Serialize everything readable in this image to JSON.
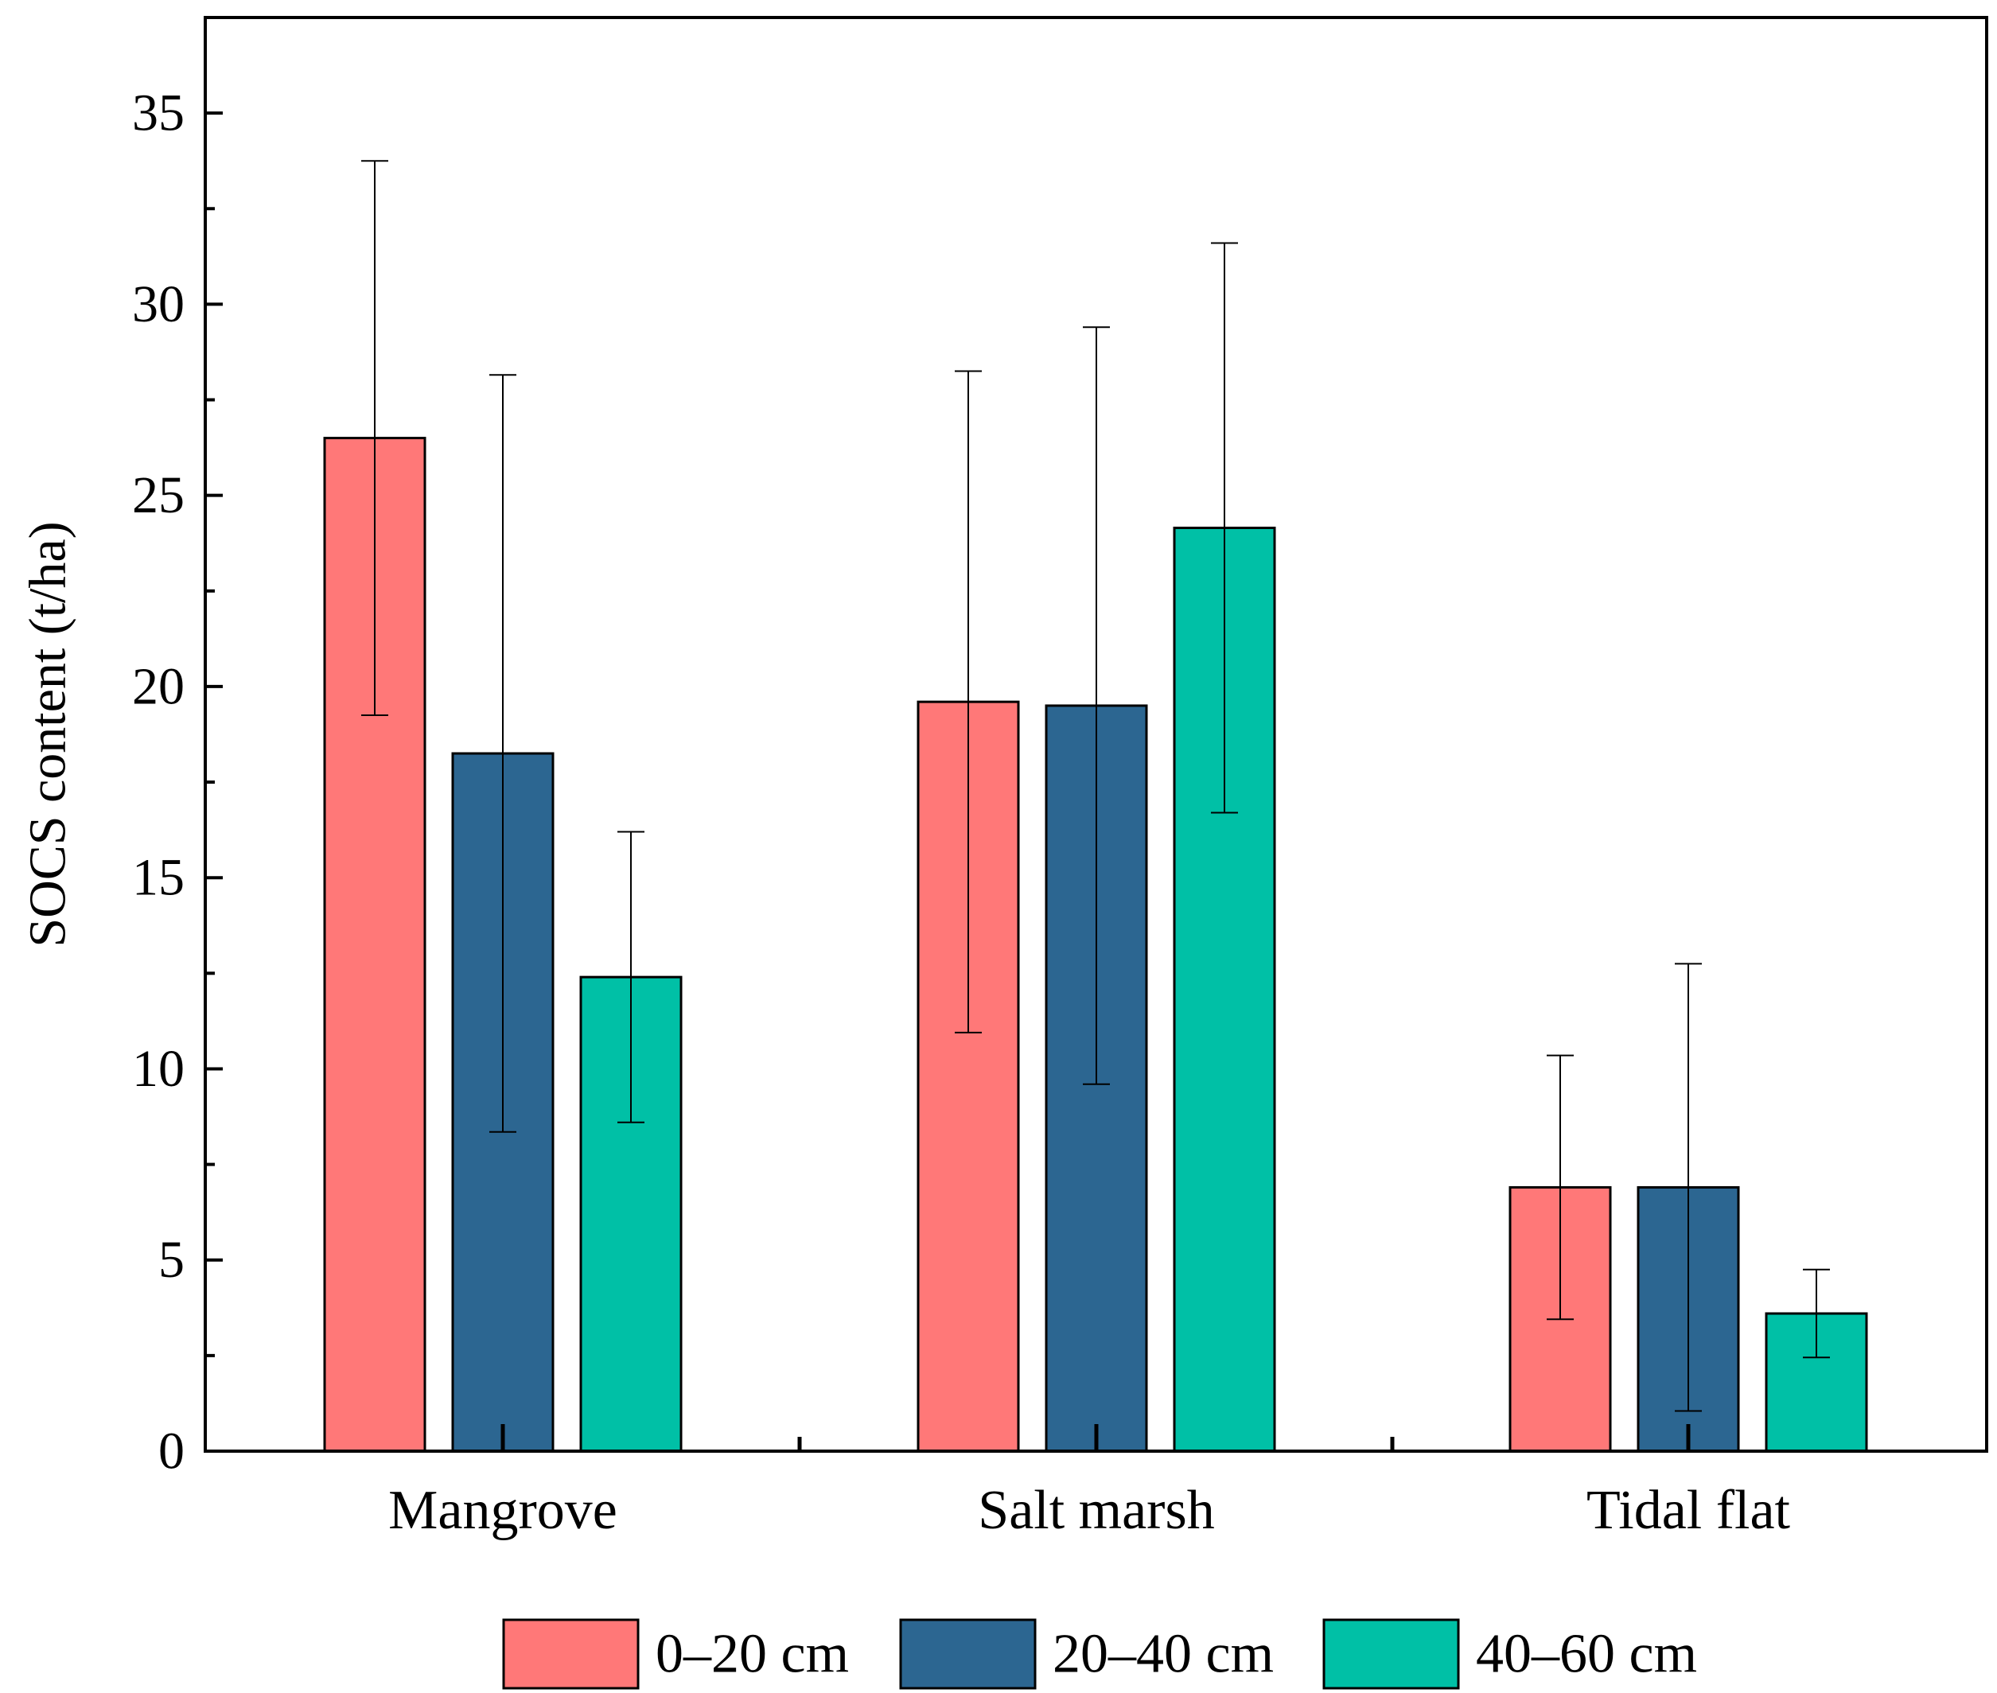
{
  "chart_data": {
    "type": "bar",
    "title": "",
    "xlabel": "",
    "ylabel": "SOCS content (t/ha)",
    "ylim": [
      0,
      37.5
    ],
    "yticks": [
      0,
      5,
      10,
      15,
      20,
      25,
      30,
      35
    ],
    "yticks_text": [
      "0",
      "5",
      "10",
      "15",
      "20",
      "25",
      "30",
      "35"
    ],
    "categories": [
      "Mangrove",
      "Salt marsh",
      "Tidal flat"
    ],
    "series": [
      {
        "name": "0–20 cm",
        "color": "#FF7878",
        "values": [
          26.5,
          19.6,
          6.9
        ],
        "errors": [
          7.25,
          8.65,
          3.45
        ]
      },
      {
        "name": "20–40 cm",
        "color": "#2C6691",
        "values": [
          18.25,
          19.5,
          6.9
        ],
        "errors": [
          9.9,
          9.9,
          5.85
        ]
      },
      {
        "name": "40–60 cm",
        "color": "#00C0A6",
        "values": [
          12.4,
          24.15,
          3.6
        ],
        "errors": [
          3.8,
          7.45,
          1.15
        ]
      }
    ],
    "grid": false,
    "legend_position": "bottom"
  }
}
